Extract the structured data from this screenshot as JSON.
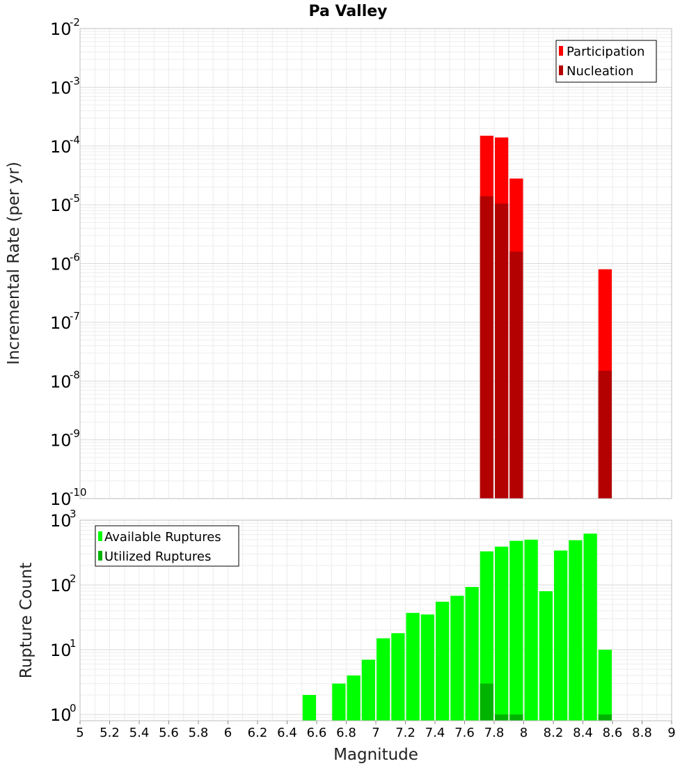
{
  "chart_data": [
    {
      "type": "bar",
      "title": "Pa Valley",
      "xlabel": "Magnitude",
      "ylabel": "Incremental Rate (per yr)",
      "yscale": "log",
      "xlim": [
        5,
        9
      ],
      "ylim": [
        1e-10,
        0.01
      ],
      "y_ticks": [
        {
          "base": "10",
          "exp": "-10",
          "value": 1e-10
        },
        {
          "base": "10",
          "exp": "-9",
          "value": 1e-09
        },
        {
          "base": "10",
          "exp": "-8",
          "value": 1e-08
        },
        {
          "base": "10",
          "exp": "-7",
          "value": 1e-07
        },
        {
          "base": "10",
          "exp": "-6",
          "value": 1e-06
        },
        {
          "base": "10",
          "exp": "-5",
          "value": 1e-05
        },
        {
          "base": "10",
          "exp": "-4",
          "value": 0.0001
        },
        {
          "base": "10",
          "exp": "-3",
          "value": 0.001
        },
        {
          "base": "10",
          "exp": "-2",
          "value": 0.01
        }
      ],
      "bar_width": 0.1,
      "legend_position": "top-right",
      "series": [
        {
          "name": "Participation",
          "color": "#ff0000",
          "x": [
            7.75,
            7.85,
            7.95,
            8.55
          ],
          "values": [
            0.00015,
            0.00014,
            2.8e-05,
            8e-07
          ]
        },
        {
          "name": "Nucleation",
          "color": "#b30000",
          "x": [
            7.75,
            7.85,
            7.95,
            8.55
          ],
          "values": [
            1.4e-05,
            1.05e-05,
            1.6e-06,
            1.5e-08
          ]
        }
      ]
    },
    {
      "type": "bar",
      "title": "",
      "xlabel": "Magnitude",
      "ylabel": "Rupture Count",
      "yscale": "log",
      "xlim": [
        5,
        9
      ],
      "ylim": [
        0.8,
        1000
      ],
      "x_ticks": [
        "5",
        "5.2",
        "5.4",
        "5.6",
        "5.8",
        "6",
        "6.2",
        "6.4",
        "6.6",
        "6.8",
        "7",
        "7.2",
        "7.4",
        "7.6",
        "7.8",
        "8",
        "8.2",
        "8.4",
        "8.6",
        "8.8",
        "9"
      ],
      "y_ticks": [
        {
          "base": "10",
          "exp": "0",
          "value": 1
        },
        {
          "base": "10",
          "exp": "1",
          "value": 10
        },
        {
          "base": "10",
          "exp": "2",
          "value": 100
        },
        {
          "base": "10",
          "exp": "3",
          "value": 1000
        }
      ],
      "bar_width": 0.1,
      "legend_position": "top-left",
      "series": [
        {
          "name": "Available Ruptures",
          "color": "#00ff00",
          "x": [
            6.55,
            6.75,
            6.85,
            6.95,
            7.05,
            7.15,
            7.25,
            7.35,
            7.45,
            7.55,
            7.65,
            7.75,
            7.85,
            7.95,
            8.05,
            8.15,
            8.25,
            8.35,
            8.45,
            8.55
          ],
          "values": [
            2,
            3,
            4,
            7,
            15,
            18,
            37,
            35,
            55,
            68,
            93,
            330,
            390,
            480,
            500,
            80,
            340,
            490,
            620,
            10
          ]
        },
        {
          "name": "Utilized Ruptures",
          "color": "#00b300",
          "x": [
            7.75,
            7.85,
            7.95,
            8.55
          ],
          "values": [
            3,
            1,
            1,
            1
          ]
        }
      ]
    }
  ]
}
